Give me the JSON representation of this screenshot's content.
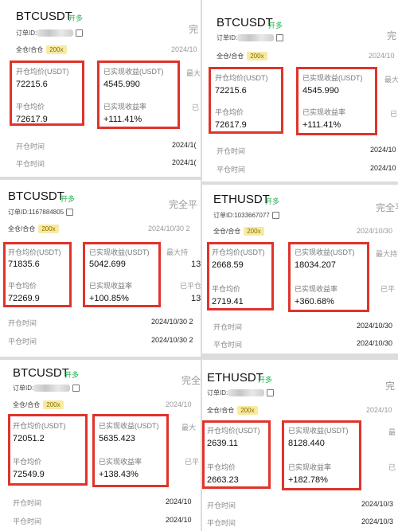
{
  "cards": [
    {
      "pair": "BTCUSDT",
      "side": "开多",
      "order_id_label": "订单ID:",
      "mode": "全仓/合仓",
      "leverage": "200x",
      "open_avg_label": "开仓均价(USDT)",
      "open_avg": "72215.6",
      "close_avg_label": "平仓均价",
      "close_avg": "72617.9",
      "pnl_label": "已实现收益(USDT)",
      "pnl": "4545.990",
      "roi_label": "已实现收益率",
      "roi": "+111.41%",
      "edge_status": "完",
      "edge_date": "2024/10",
      "edge_max": "最大",
      "edge_close": "已",
      "open_time_label": "开仓时间",
      "open_time": "2024/1(",
      "close_time_label": "平仓时间",
      "close_time": "2024/1("
    },
    {
      "pair": "BTCUSDT",
      "side": "开多",
      "order_id_label": "订单ID:",
      "mode": "全仓/合仓",
      "leverage": "200x",
      "open_avg_label": "开仓均价(USDT)",
      "open_avg": "72215.6",
      "close_avg_label": "平仓均价",
      "close_avg": "72617.9",
      "pnl_label": "已实现收益(USDT)",
      "pnl": "4545.990",
      "roi_label": "已实现收益率",
      "roi": "+111.41%",
      "edge_status": "完",
      "edge_date": "2024/10",
      "edge_max": "最大",
      "edge_close": "已",
      "open_time_label": "开仓时间",
      "open_time": "2024/10",
      "close_time_label": "平仓时间",
      "close_time": "2024/10"
    },
    {
      "pair": "BTCUSDT",
      "side": "开多",
      "order_id_label": "订单ID:1167884805",
      "mode": "全仓/合仓",
      "leverage": "200x",
      "open_avg_label": "开仓均价(USDT)",
      "open_avg": "71835.6",
      "close_avg_label": "平仓均价",
      "close_avg": "72269.9",
      "pnl_label": "已实现收益(USDT)",
      "pnl": "5042.699",
      "roi_label": "已实现收益率",
      "roi": "+100.85%",
      "edge_status": "完全平",
      "edge_date": "2024/10/30 2",
      "edge_max": "最大持",
      "edge_close": "已平仓",
      "edge_max_v": "13",
      "edge_close_v": "13",
      "open_time_label": "开仓时间",
      "open_time": "2024/10/30 2",
      "close_time_label": "平仓时间",
      "close_time": "2024/10/30 2"
    },
    {
      "pair": "ETHUSDT",
      "side": "开多",
      "order_id_label": "订单ID:1033667077",
      "mode": "全仓/合仓",
      "leverage": "200x",
      "open_avg_label": "开仓均价(USDT)",
      "open_avg": "2668.59",
      "close_avg_label": "平仓均价",
      "close_avg": "2719.41",
      "pnl_label": "已实现收益(USDT)",
      "pnl": "18034.207",
      "roi_label": "已实现收益率",
      "roi": "+360.68%",
      "edge_status": "完全平",
      "edge_date": "2024/10/30",
      "edge_max": "最大持",
      "edge_close": "已平",
      "open_time_label": "开仓时间",
      "open_time": "2024/10/30",
      "close_time_label": "平仓时间",
      "close_time": "2024/10/30"
    },
    {
      "pair": "BTCUSDT",
      "side": "开多",
      "order_id_label": "订单ID:",
      "mode": "全仓/合仓",
      "leverage": "200x",
      "open_avg_label": "开仓均价(USDT)",
      "open_avg": "72051.2",
      "close_avg_label": "平仓均价",
      "close_avg": "72549.9",
      "pnl_label": "已实现收益(USDT)",
      "pnl": "5635.423",
      "roi_label": "已实现收益率",
      "roi": "+138.43%",
      "edge_status": "完全",
      "edge_date": "2024/10",
      "edge_max": "最大",
      "edge_close": "已平",
      "open_time_label": "开仓时间",
      "open_time": "2024/10",
      "close_time_label": "平仓时间",
      "close_time": "2024/10"
    },
    {
      "pair": "ETHUSDT",
      "side": "开多",
      "order_id_label": "订单ID:",
      "mode": "全仓/合仓",
      "leverage": "200x",
      "open_avg_label": "开仓均价(USDT)",
      "open_avg": "2639.11",
      "close_avg_label": "平仓均价",
      "close_avg": "2663.23",
      "pnl_label": "已实现收益(USDT)",
      "pnl": "8128.440",
      "roi_label": "已实现收益率",
      "roi": "+182.78%",
      "edge_status": "完",
      "edge_date": "2024/10",
      "edge_max": "最",
      "edge_close": "已",
      "open_time_label": "开仓时间",
      "open_time": "2024/10/3",
      "close_time_label": "平仓时间",
      "close_time": "2024/10/3"
    }
  ],
  "colors": {
    "highlight": "#e0332b",
    "long": "#1bb24b",
    "leverage_bg": "#f7eaa2"
  }
}
